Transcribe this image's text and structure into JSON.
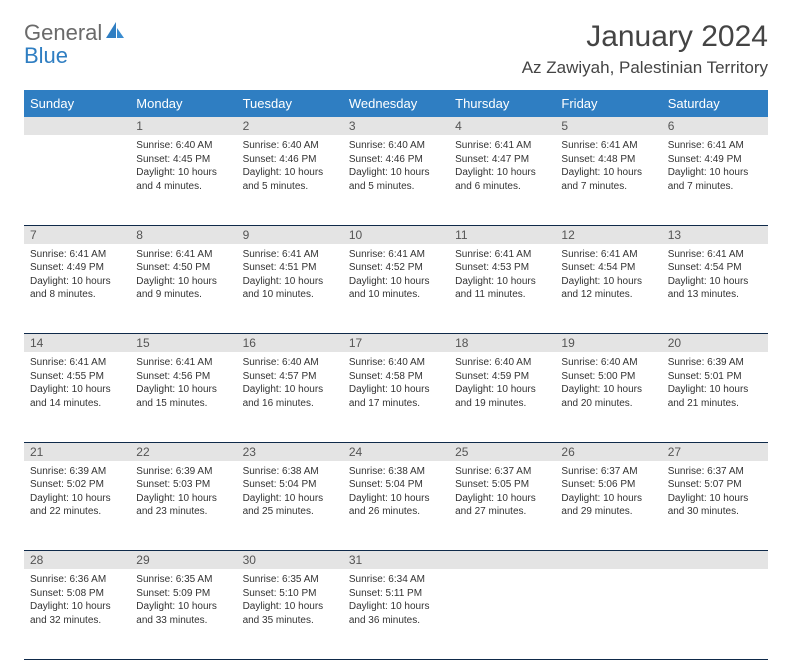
{
  "brand": {
    "part1": "General",
    "part2": "Blue"
  },
  "title": "January 2024",
  "location": "Az Zawiyah, Palestinian Territory",
  "colors": {
    "header_bg": "#2f7ec2",
    "header_text": "#ffffff",
    "daynum_bg": "#e4e4e4",
    "daynum_text": "#555555",
    "week_border": "#0f2a4a",
    "body_bg": "#ffffff",
    "text": "#333333",
    "brand_gray": "#6a6a6a",
    "brand_blue": "#2f7ec2"
  },
  "layout": {
    "fontsize_title": 30,
    "fontsize_location": 17,
    "fontsize_dayheader": 13,
    "fontsize_daynum": 12,
    "fontsize_cell": 10
  },
  "day_headers": [
    "Sunday",
    "Monday",
    "Tuesday",
    "Wednesday",
    "Thursday",
    "Friday",
    "Saturday"
  ],
  "weeks": [
    [
      null,
      {
        "num": "1",
        "sunrise": "Sunrise: 6:40 AM",
        "sunset": "Sunset: 4:45 PM",
        "daylight": "Daylight: 10 hours and 4 minutes."
      },
      {
        "num": "2",
        "sunrise": "Sunrise: 6:40 AM",
        "sunset": "Sunset: 4:46 PM",
        "daylight": "Daylight: 10 hours and 5 minutes."
      },
      {
        "num": "3",
        "sunrise": "Sunrise: 6:40 AM",
        "sunset": "Sunset: 4:46 PM",
        "daylight": "Daylight: 10 hours and 5 minutes."
      },
      {
        "num": "4",
        "sunrise": "Sunrise: 6:41 AM",
        "sunset": "Sunset: 4:47 PM",
        "daylight": "Daylight: 10 hours and 6 minutes."
      },
      {
        "num": "5",
        "sunrise": "Sunrise: 6:41 AM",
        "sunset": "Sunset: 4:48 PM",
        "daylight": "Daylight: 10 hours and 7 minutes."
      },
      {
        "num": "6",
        "sunrise": "Sunrise: 6:41 AM",
        "sunset": "Sunset: 4:49 PM",
        "daylight": "Daylight: 10 hours and 7 minutes."
      }
    ],
    [
      {
        "num": "7",
        "sunrise": "Sunrise: 6:41 AM",
        "sunset": "Sunset: 4:49 PM",
        "daylight": "Daylight: 10 hours and 8 minutes."
      },
      {
        "num": "8",
        "sunrise": "Sunrise: 6:41 AM",
        "sunset": "Sunset: 4:50 PM",
        "daylight": "Daylight: 10 hours and 9 minutes."
      },
      {
        "num": "9",
        "sunrise": "Sunrise: 6:41 AM",
        "sunset": "Sunset: 4:51 PM",
        "daylight": "Daylight: 10 hours and 10 minutes."
      },
      {
        "num": "10",
        "sunrise": "Sunrise: 6:41 AM",
        "sunset": "Sunset: 4:52 PM",
        "daylight": "Daylight: 10 hours and 10 minutes."
      },
      {
        "num": "11",
        "sunrise": "Sunrise: 6:41 AM",
        "sunset": "Sunset: 4:53 PM",
        "daylight": "Daylight: 10 hours and 11 minutes."
      },
      {
        "num": "12",
        "sunrise": "Sunrise: 6:41 AM",
        "sunset": "Sunset: 4:54 PM",
        "daylight": "Daylight: 10 hours and 12 minutes."
      },
      {
        "num": "13",
        "sunrise": "Sunrise: 6:41 AM",
        "sunset": "Sunset: 4:54 PM",
        "daylight": "Daylight: 10 hours and 13 minutes."
      }
    ],
    [
      {
        "num": "14",
        "sunrise": "Sunrise: 6:41 AM",
        "sunset": "Sunset: 4:55 PM",
        "daylight": "Daylight: 10 hours and 14 minutes."
      },
      {
        "num": "15",
        "sunrise": "Sunrise: 6:41 AM",
        "sunset": "Sunset: 4:56 PM",
        "daylight": "Daylight: 10 hours and 15 minutes."
      },
      {
        "num": "16",
        "sunrise": "Sunrise: 6:40 AM",
        "sunset": "Sunset: 4:57 PM",
        "daylight": "Daylight: 10 hours and 16 minutes."
      },
      {
        "num": "17",
        "sunrise": "Sunrise: 6:40 AM",
        "sunset": "Sunset: 4:58 PM",
        "daylight": "Daylight: 10 hours and 17 minutes."
      },
      {
        "num": "18",
        "sunrise": "Sunrise: 6:40 AM",
        "sunset": "Sunset: 4:59 PM",
        "daylight": "Daylight: 10 hours and 19 minutes."
      },
      {
        "num": "19",
        "sunrise": "Sunrise: 6:40 AM",
        "sunset": "Sunset: 5:00 PM",
        "daylight": "Daylight: 10 hours and 20 minutes."
      },
      {
        "num": "20",
        "sunrise": "Sunrise: 6:39 AM",
        "sunset": "Sunset: 5:01 PM",
        "daylight": "Daylight: 10 hours and 21 minutes."
      }
    ],
    [
      {
        "num": "21",
        "sunrise": "Sunrise: 6:39 AM",
        "sunset": "Sunset: 5:02 PM",
        "daylight": "Daylight: 10 hours and 22 minutes."
      },
      {
        "num": "22",
        "sunrise": "Sunrise: 6:39 AM",
        "sunset": "Sunset: 5:03 PM",
        "daylight": "Daylight: 10 hours and 23 minutes."
      },
      {
        "num": "23",
        "sunrise": "Sunrise: 6:38 AM",
        "sunset": "Sunset: 5:04 PM",
        "daylight": "Daylight: 10 hours and 25 minutes."
      },
      {
        "num": "24",
        "sunrise": "Sunrise: 6:38 AM",
        "sunset": "Sunset: 5:04 PM",
        "daylight": "Daylight: 10 hours and 26 minutes."
      },
      {
        "num": "25",
        "sunrise": "Sunrise: 6:37 AM",
        "sunset": "Sunset: 5:05 PM",
        "daylight": "Daylight: 10 hours and 27 minutes."
      },
      {
        "num": "26",
        "sunrise": "Sunrise: 6:37 AM",
        "sunset": "Sunset: 5:06 PM",
        "daylight": "Daylight: 10 hours and 29 minutes."
      },
      {
        "num": "27",
        "sunrise": "Sunrise: 6:37 AM",
        "sunset": "Sunset: 5:07 PM",
        "daylight": "Daylight: 10 hours and 30 minutes."
      }
    ],
    [
      {
        "num": "28",
        "sunrise": "Sunrise: 6:36 AM",
        "sunset": "Sunset: 5:08 PM",
        "daylight": "Daylight: 10 hours and 32 minutes."
      },
      {
        "num": "29",
        "sunrise": "Sunrise: 6:35 AM",
        "sunset": "Sunset: 5:09 PM",
        "daylight": "Daylight: 10 hours and 33 minutes."
      },
      {
        "num": "30",
        "sunrise": "Sunrise: 6:35 AM",
        "sunset": "Sunset: 5:10 PM",
        "daylight": "Daylight: 10 hours and 35 minutes."
      },
      {
        "num": "31",
        "sunrise": "Sunrise: 6:34 AM",
        "sunset": "Sunset: 5:11 PM",
        "daylight": "Daylight: 10 hours and 36 minutes."
      },
      null,
      null,
      null
    ]
  ]
}
